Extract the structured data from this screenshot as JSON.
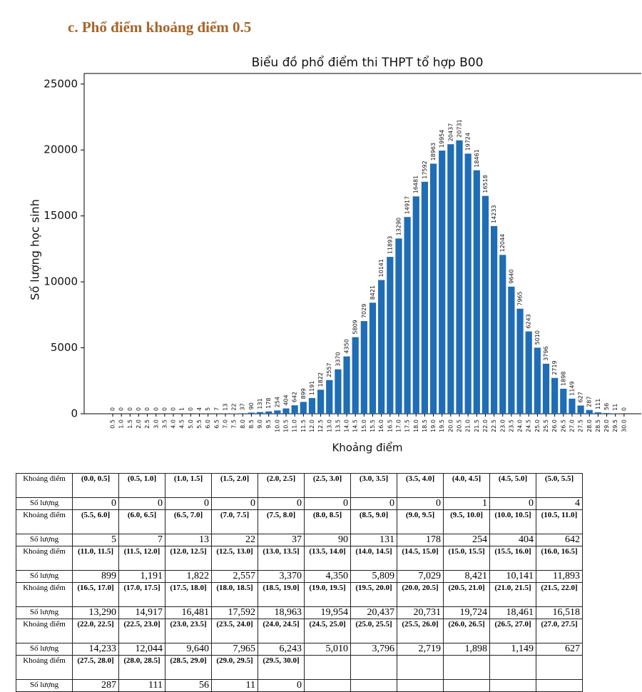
{
  "heading": "c.  Phổ điểm khoảng điểm 0.5",
  "chart_data": {
    "type": "bar",
    "title": "Biểu đồ phổ điểm thi THPT tổ hợp B00",
    "x_label": "Khoảng điểm",
    "y_label": "Số lượng học sinh",
    "color": "#1f6db5",
    "categories": [
      "0.5",
      "1.0",
      "1.5",
      "2.0",
      "2.5",
      "3.0",
      "3.5",
      "4.0",
      "4.5",
      "5.0",
      "5.5",
      "6.0",
      "6.5",
      "7.0",
      "7.5",
      "8.0",
      "8.5",
      "9.0",
      "9.5",
      "10.0",
      "10.5",
      "11.0",
      "11.5",
      "12.0",
      "12.5",
      "13.0",
      "13.5",
      "14.0",
      "14.5",
      "15.0",
      "15.5",
      "16.0",
      "16.5",
      "17.0",
      "17.5",
      "18.0",
      "18.5",
      "19.0",
      "19.5",
      "20.0",
      "20.5",
      "21.0",
      "21.5",
      "22.0",
      "22.5",
      "23.0",
      "23.5",
      "24.0",
      "24.5",
      "25.0",
      "25.5",
      "26.0",
      "26.5",
      "27.0",
      "27.5",
      "28.0",
      "28.5",
      "29.0",
      "29.5",
      "30.0"
    ],
    "values": [
      0,
      0,
      0,
      0,
      0,
      0,
      0,
      0,
      1,
      0,
      4,
      5,
      7,
      13,
      22,
      37,
      90,
      131,
      178,
      254,
      404,
      642,
      899,
      1191,
      1822,
      2557,
      3370,
      4350,
      5809,
      7029,
      8421,
      10141,
      11893,
      13290,
      14917,
      16481,
      17592,
      18963,
      19954,
      20437,
      20731,
      19724,
      18461,
      16518,
      14233,
      12044,
      9640,
      7965,
      6243,
      5010,
      3796,
      2719,
      1898,
      1149,
      627,
      287,
      111,
      56,
      11,
      0
    ],
    "ylim": [
      0,
      25800
    ],
    "yticks": [
      0,
      5000,
      10000,
      15000,
      20000,
      25000
    ]
  },
  "table": {
    "interval_label": "Khoảng điểm",
    "count_label": "Số lượng",
    "rows": [
      {
        "intervals": [
          "(0.0, 0.5]",
          "(0.5, 1.0]",
          "(1.0, 1.5]",
          "(1.5, 2.0]",
          "(2.0, 2.5]",
          "(2.5, 3.0]",
          "(3.0, 3.5]",
          "(3.5, 4.0]",
          "(4.0, 4.5]",
          "(4.5, 5.0]",
          "(5.0, 5.5]"
        ],
        "counts": [
          "0",
          "0",
          "0",
          "0",
          "0",
          "0",
          "0",
          "0",
          "1",
          "0",
          "4"
        ]
      },
      {
        "intervals": [
          "(5.5, 6.0]",
          "(6.0, 6.5]",
          "(6.5, 7.0]",
          "(7.0, 7.5]",
          "(7.5, 8.0]",
          "(8.0, 8.5]",
          "(8.5, 9.0]",
          "(9.0, 9.5]",
          "(9.5, 10.0]",
          "(10.0, 10.5]",
          "(10.5, 11.0]"
        ],
        "counts": [
          "5",
          "7",
          "13",
          "22",
          "37",
          "90",
          "131",
          "178",
          "254",
          "404",
          "642"
        ]
      },
      {
        "intervals": [
          "(11.0, 11.5]",
          "(11.5, 12.0]",
          "(12.0, 12.5]",
          "(12.5, 13.0]",
          "(13.0, 13.5]",
          "(13.5, 14.0]",
          "(14.0, 14.5]",
          "(14.5, 15.0]",
          "(15.0, 15.5]",
          "(15.5, 16.0]",
          "(16.0, 16.5]"
        ],
        "counts": [
          "899",
          "1,191",
          "1,822",
          "2,557",
          "3,370",
          "4,350",
          "5,809",
          "7,029",
          "8,421",
          "10,141",
          "11,893"
        ]
      },
      {
        "intervals": [
          "(16.5, 17.0]",
          "(17.0, 17.5]",
          "(17.5, 18.0]",
          "(18.0, 18.5]",
          "(18.5, 19.0]",
          "(19.0, 19.5]",
          "(19.5, 20.0]",
          "(20.0, 20.5]",
          "(20.5, 21.0]",
          "(21.0, 21.5]",
          "(21.5, 22.0]"
        ],
        "counts": [
          "13,290",
          "14,917",
          "16,481",
          "17,592",
          "18,963",
          "19,954",
          "20,437",
          "20,731",
          "19,724",
          "18,461",
          "16,518"
        ]
      },
      {
        "intervals": [
          "(22.0, 22.5]",
          "(22.5, 23.0]",
          "(23.0, 23.5]",
          "(23.5, 24.0]",
          "(24.0, 24.5]",
          "(24.5, 25.0]",
          "(25.0, 25.5]",
          "(25.5, 26.0]",
          "(26.0, 26.5]",
          "(26.5, 27.0]",
          "(27.0, 27.5]"
        ],
        "counts": [
          "14,233",
          "12,044",
          "9,640",
          "7,965",
          "6,243",
          "5,010",
          "3,796",
          "2,719",
          "1,898",
          "1,149",
          "627"
        ]
      },
      {
        "intervals": [
          "(27.5, 28.0]",
          "(28.0, 28.5]",
          "(28.5, 29.0]",
          "(29.0, 29.5]",
          "(29.5, 30.0]"
        ],
        "counts": [
          "287",
          "111",
          "56",
          "11",
          "0"
        ]
      }
    ]
  }
}
